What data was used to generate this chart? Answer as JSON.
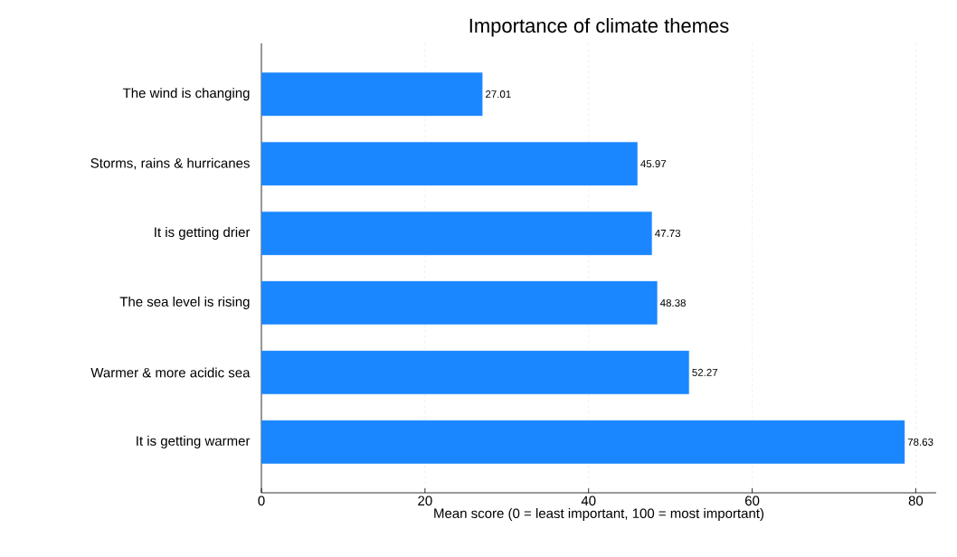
{
  "chart_data": {
    "type": "bar",
    "orientation": "horizontal",
    "title": "Importance of climate themes",
    "xlabel": "Mean score (0 = least important, 100 = most important)",
    "categories": [
      "The wind is changing",
      "Storms, rains & hurricanes",
      "It is getting drier",
      "The sea level is rising",
      "Warmer & more acidic sea",
      "It is getting warmer"
    ],
    "values": [
      27.01,
      45.97,
      47.73,
      48.38,
      52.27,
      78.63
    ],
    "color": "#1a86ff",
    "xlim": [
      0,
      82.5
    ],
    "xticks": [
      0,
      20,
      40,
      60,
      80
    ],
    "grid": "x",
    "data_labels": true
  }
}
